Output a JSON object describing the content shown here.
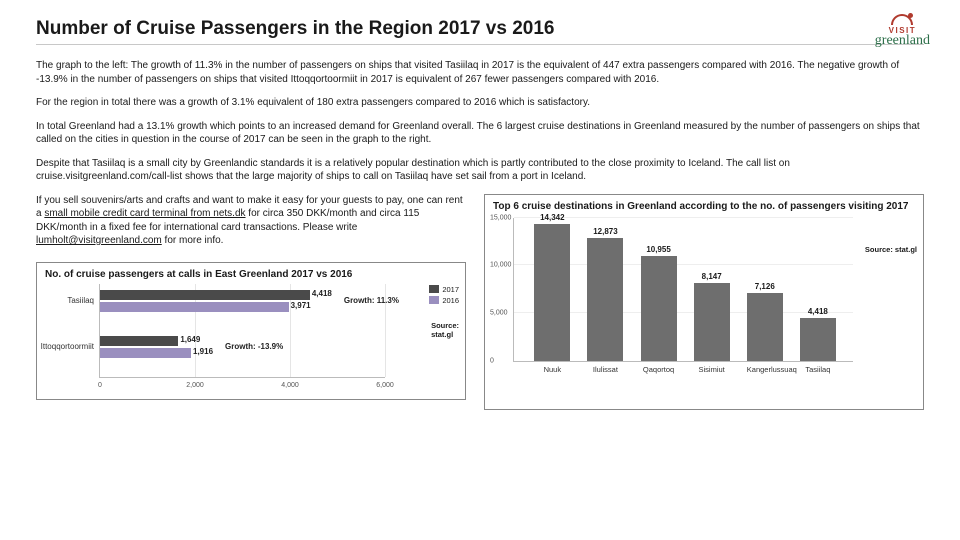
{
  "title": "Number of Cruise Passengers in the Region 2017 vs 2016",
  "logo": {
    "top_text": "VISIT",
    "script": "greenland"
  },
  "paragraphs": {
    "p1": "The graph to the left: The growth of 11.3% in the number of passengers on ships that visited Tasiilaq in 2017 is the equivalent of 447 extra passengers compared with 2016. The negative growth of -13.9% in the number of passengers on ships that visited Ittoqqortoormiit in 2017 is equivalent of 267 fewer passengers compared with 2016.",
    "p2": "For the region in total there was a growth of 3.1% equivalent of 180 extra passengers compared to 2016 which is satisfactory.",
    "p3": "In total Greenland had a 13.1% growth which points to an increased demand for Greenland overall. The 6 largest cruise destinations in Greenland measured by the number of passengers on ships that called on the cities in question in the course of 2017 can be seen in the graph to the right.",
    "p4": "Despite that Tasiilaq is a small city by Greenlandic standards it is a relatively popular destination which is partly contributed to the close proximity to Iceland.  The call list on cruise.visitgreenland.com/call-list shows that the large majority of ships to call on Tasiilaq have set sail from a port in Iceland.",
    "p5_a": "If you sell souvenirs/arts and crafts and want to make it easy for your guests to pay, one can rent a ",
    "p5_link1": "small mobile credit card terminal from nets.dk",
    "p5_b": " for circa 350 DKK/month and circa 115 DKK/month in a fixed fee for international card transactions. Please write ",
    "p5_link2": "lumholt@visitgreenland.com",
    "p5_c": " for more info."
  },
  "chart_left": {
    "title": "No. of cruise passengers at calls in East Greenland 2017 vs 2016",
    "type": "bar_horizontal_grouped",
    "x_max": 6000,
    "x_ticks": [
      0,
      2000,
      4000,
      6000
    ],
    "x_tick_labels": [
      "0",
      "2,000",
      "4,000",
      "6,000"
    ],
    "series": [
      {
        "name": "2017",
        "color": "#4a4a4a"
      },
      {
        "name": "2016",
        "color": "#9a8fbf"
      }
    ],
    "categories": [
      {
        "label": "Tasiilaq",
        "values": [
          4418,
          3971
        ],
        "value_labels": [
          "4,418",
          "3,971"
        ],
        "growth_label": "Growth: 11.3%"
      },
      {
        "label": "Ittoqqortoormiit",
        "values": [
          1649,
          1916
        ],
        "value_labels": [
          "1,649",
          "1,916"
        ],
        "growth_label": "Growth: -13.9%"
      }
    ],
    "source_label": "Source:",
    "source_value": "stat.gl",
    "background_color": "#ffffff",
    "grid_color": "#e5e5e5"
  },
  "chart_right": {
    "title": "Top 6 cruise destinations in Greenland according to the no. of passengers visiting 2017",
    "type": "bar_vertical",
    "y_max": 15000,
    "y_ticks": [
      0,
      5000,
      10000,
      15000
    ],
    "y_tick_labels": [
      "0",
      "5,000",
      "10,000",
      "15,000"
    ],
    "bar_color": "#6e6e6e",
    "bars": [
      {
        "label": "Nuuk",
        "value": 14342,
        "value_label": "14,342"
      },
      {
        "label": "Ilulissat",
        "value": 12873,
        "value_label": "12,873"
      },
      {
        "label": "Qaqortoq",
        "value": 10955,
        "value_label": "10,955"
      },
      {
        "label": "Sisimiut",
        "value": 8147,
        "value_label": "8,147"
      },
      {
        "label": "Kangerlussuaq",
        "value": 7126,
        "value_label": "7,126"
      },
      {
        "label": "Tasiilaq",
        "value": 4418,
        "value_label": "4,418"
      }
    ],
    "source_label": "Source: stat.gl",
    "background_color": "#ffffff"
  }
}
